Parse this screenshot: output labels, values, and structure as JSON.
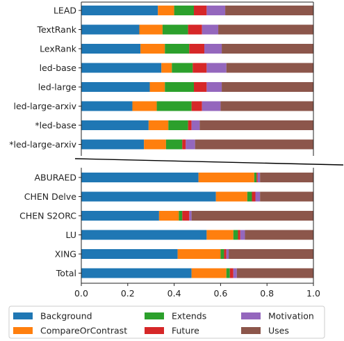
{
  "chart_data": {
    "type": "bar",
    "orientation": "horizontal",
    "stacked": true,
    "xlim": [
      0,
      1
    ],
    "grid": false,
    "legend_position": "bottom",
    "series": [
      {
        "name": "Background",
        "color": "#1f77b4"
      },
      {
        "name": "CompareOrContrast",
        "color": "#ff7f0e"
      },
      {
        "name": "Extends",
        "color": "#2ca02c"
      },
      {
        "name": "Future",
        "color": "#d62728"
      },
      {
        "name": "Motivation",
        "color": "#9467bd"
      },
      {
        "name": "Uses",
        "color": "#8c564b"
      }
    ],
    "panels": [
      {
        "categories": [
          "LEAD",
          "TextRank",
          "LexRank",
          "led-base",
          "led-large",
          "led-large-arxiv",
          "*led-base",
          "*led-large-arxiv"
        ],
        "values": [
          [
            0.33,
            0.07,
            0.085,
            0.055,
            0.08,
            0.38
          ],
          [
            0.25,
            0.1,
            0.11,
            0.06,
            0.07,
            0.41
          ],
          [
            0.255,
            0.105,
            0.105,
            0.065,
            0.075,
            0.395
          ],
          [
            0.345,
            0.045,
            0.09,
            0.06,
            0.085,
            0.375
          ],
          [
            0.295,
            0.065,
            0.125,
            0.055,
            0.065,
            0.395
          ],
          [
            0.22,
            0.105,
            0.15,
            0.045,
            0.08,
            0.4
          ],
          [
            0.29,
            0.085,
            0.085,
            0.015,
            0.035,
            0.49
          ],
          [
            0.27,
            0.095,
            0.07,
            0.015,
            0.04,
            0.51
          ]
        ]
      },
      {
        "categories": [
          "ABURAED",
          "CHEN Delve",
          "CHEN S2ORC",
          "LU",
          "XING",
          "Total"
        ],
        "values": [
          [
            0.505,
            0.24,
            0.01,
            0.005,
            0.01,
            0.23
          ],
          [
            0.58,
            0.135,
            0.02,
            0.015,
            0.02,
            0.23
          ],
          [
            0.335,
            0.085,
            0.015,
            0.03,
            0.01,
            0.525
          ],
          [
            0.54,
            0.115,
            0.02,
            0.01,
            0.02,
            0.295
          ],
          [
            0.415,
            0.185,
            0.015,
            0.01,
            0.01,
            0.365
          ],
          [
            0.475,
            0.15,
            0.015,
            0.015,
            0.015,
            0.33
          ]
        ]
      }
    ],
    "xticks": [
      "0.0",
      "0.2",
      "0.4",
      "0.6",
      "0.8",
      "1.0"
    ]
  }
}
